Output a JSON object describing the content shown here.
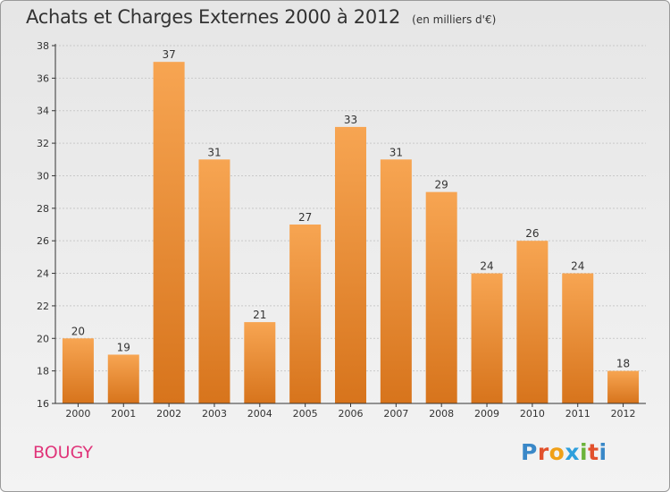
{
  "chart_data": {
    "type": "bar",
    "title": "Achats et Charges Externes 2000 à 2012",
    "unit_note": "(en milliers d'€)",
    "categories": [
      "2000",
      "2001",
      "2002",
      "2003",
      "2004",
      "2005",
      "2006",
      "2007",
      "2008",
      "2009",
      "2010",
      "2011",
      "2012"
    ],
    "values": [
      20,
      19,
      37,
      31,
      21,
      27,
      33,
      31,
      29,
      24,
      26,
      24,
      18
    ],
    "ylim": [
      16,
      38
    ],
    "yticks": [
      16,
      18,
      20,
      22,
      24,
      26,
      28,
      30,
      32,
      34,
      36,
      38
    ],
    "grid": true,
    "legend": "none",
    "bar_color_top": "#f7a552",
    "bar_color_bottom": "#d7741c"
  },
  "place_name": "BOUGY",
  "logo": {
    "letters": [
      "P",
      "r",
      "o",
      "x",
      "i",
      "t",
      "i"
    ],
    "colors": [
      "#3a88c8",
      "#e2512c",
      "#f0a018",
      "#2e9fdc",
      "#6bb33a",
      "#e2512c",
      "#3a88c8"
    ]
  },
  "colors": {
    "place": "#e0357a",
    "grid": "#c9c9c9",
    "axis": "#333333"
  }
}
